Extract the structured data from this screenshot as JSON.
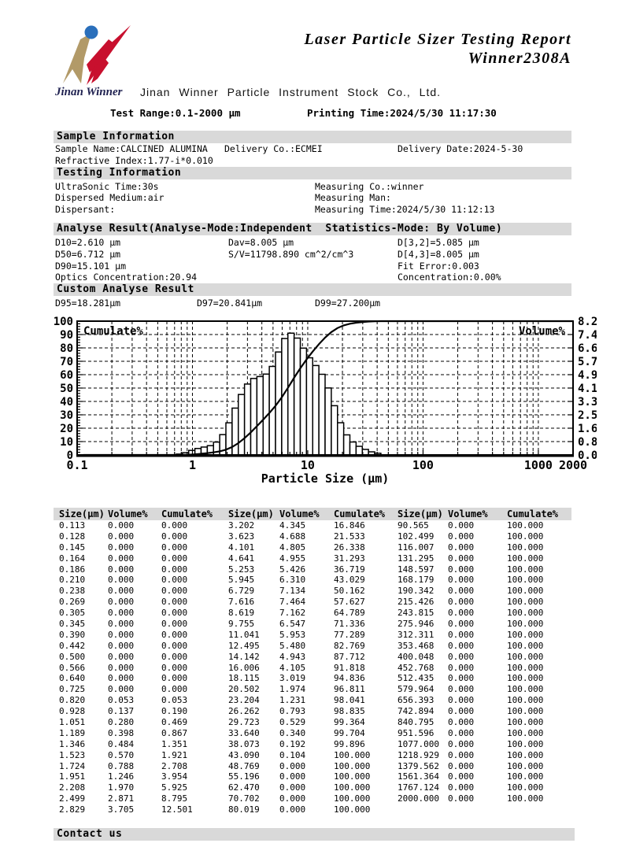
{
  "header": {
    "title_line1": "Laser Particle Sizer Testing Report",
    "title_line2": "Winner2308A",
    "logo_text": "Jinan Winner",
    "company": "Jinan Winner Particle Instrument Stock Co., Ltd.",
    "test_range": "Test Range:0.1-2000 μm",
    "printing_time": "Printing Time:2024/5/30 11:17:30"
  },
  "sample_information": {
    "heading": "Sample Information",
    "sample_name": "Sample Name:CALCINED ALUMINA",
    "delivery_co": "Delivery Co.:ECMEI",
    "delivery_date": "Delivery Date:2024-5-30",
    "refractive_index": "Refractive Index:1.77-i*0.010"
  },
  "testing_information": {
    "heading": "Testing Information",
    "ultrasonic_time": "UltraSonic Time:30s",
    "measuring_co": "Measuring Co.:winner",
    "dispersed_medium": "Dispersed Medium:air",
    "measuring_man": "Measuring Man:",
    "dispersant": "Dispersant:",
    "measuring_time": "Measuring Time:2024/5/30 11:12:13"
  },
  "analyse_result": {
    "heading": "Analyse Result(Analyse-Mode:Independent  Statistics-Mode: By Volume)",
    "d10": "D10=2.610 μm",
    "dav": "Dav=8.005 μm",
    "d32": "D[3,2]=5.085 μm",
    "d50": "D50=6.712 μm",
    "sv": "S/V=11798.890 cm^2/cm^3",
    "d43": "D[4,3]=8.005 μm",
    "d90": "D90=15.101 μm",
    "fit_error": "Fit Error:0.003",
    "optics_concentration": "Optics Concentration:20.94",
    "concentration": "Concentration:0.00%"
  },
  "custom_analyse_result": {
    "heading": "Custom Analyse Result",
    "d95": "D95=18.281μm",
    "d97": "D97=20.841μm",
    "d99": "D99=27.200μm"
  },
  "chart_data": {
    "type": "histogram+cumulative-line",
    "x_axis": {
      "label": "Particle Size (μm)",
      "scale": "log",
      "min": 0.1,
      "max": 2000,
      "tick_labels": [
        "0.1",
        "1",
        "10",
        "100",
        "1000",
        "2000"
      ],
      "tick_values": [
        0.1,
        1,
        10,
        100,
        1000,
        2000
      ]
    },
    "left_axis": {
      "label": "Cumulate%",
      "min": 0,
      "max": 100,
      "ticks": [
        0,
        10,
        20,
        30,
        40,
        50,
        60,
        70,
        80,
        90,
        100
      ]
    },
    "right_axis": {
      "label": "Volume%",
      "min": 0,
      "max": 8.2,
      "tick_labels": [
        "0.0",
        "0.8",
        "1.6",
        "2.5",
        "3.3",
        "4.1",
        "4.9",
        "5.7",
        "6.6",
        "7.4",
        "8.2"
      ]
    },
    "grid": "dashed",
    "sizes": [
      0.113,
      0.128,
      0.145,
      0.164,
      0.186,
      0.21,
      0.238,
      0.269,
      0.305,
      0.345,
      0.39,
      0.442,
      0.5,
      0.566,
      0.64,
      0.725,
      0.82,
      0.928,
      1.051,
      1.189,
      1.346,
      1.523,
      1.724,
      1.951,
      2.208,
      2.499,
      2.829,
      3.202,
      3.623,
      4.101,
      4.641,
      5.253,
      5.945,
      6.729,
      7.616,
      8.619,
      9.755,
      11.041,
      12.495,
      14.142,
      16.006,
      18.115,
      20.502,
      23.204,
      26.262,
      29.723,
      33.64,
      38.073,
      43.09,
      48.769,
      55.196,
      62.47,
      70.702,
      80.019,
      90.565,
      102.499,
      116.007,
      131.295,
      148.597,
      168.179,
      190.342,
      215.426,
      243.815,
      275.946,
      312.311,
      353.468,
      400.048,
      452.768,
      512.435,
      579.964,
      656.393,
      742.894,
      840.795,
      951.596,
      1077.0,
      1218.929,
      1379.562,
      1561.364,
      1767.124,
      2000.0
    ],
    "volume": [
      0,
      0,
      0,
      0,
      0,
      0,
      0,
      0,
      0,
      0,
      0,
      0,
      0,
      0,
      0,
      0,
      0.053,
      0.137,
      0.28,
      0.398,
      0.484,
      0.57,
      0.788,
      1.246,
      1.97,
      2.871,
      3.705,
      4.345,
      4.688,
      4.805,
      4.955,
      5.426,
      6.31,
      7.134,
      7.464,
      7.162,
      6.547,
      5.953,
      5.48,
      4.943,
      4.105,
      3.019,
      1.974,
      1.231,
      0.793,
      0.529,
      0.34,
      0.192,
      0.104,
      0,
      0,
      0,
      0,
      0,
      0,
      0,
      0,
      0,
      0,
      0,
      0,
      0,
      0,
      0,
      0,
      0,
      0,
      0,
      0,
      0,
      0,
      0,
      0,
      0,
      0,
      0,
      0,
      0,
      0,
      0
    ],
    "cumulate": [
      0,
      0,
      0,
      0,
      0,
      0,
      0,
      0,
      0,
      0,
      0,
      0,
      0,
      0,
      0,
      0,
      0.053,
      0.19,
      0.469,
      0.867,
      1.351,
      1.921,
      2.708,
      3.954,
      5.925,
      8.795,
      12.501,
      16.846,
      21.533,
      26.338,
      31.293,
      36.719,
      43.029,
      50.162,
      57.627,
      64.789,
      71.336,
      77.289,
      82.769,
      87.712,
      91.818,
      94.836,
      96.811,
      98.041,
      98.835,
      99.364,
      99.704,
      99.896,
      100.0,
      100,
      100,
      100,
      100,
      100,
      100,
      100,
      100,
      100,
      100,
      100,
      100,
      100,
      100,
      100,
      100,
      100,
      100,
      100,
      100,
      100,
      100,
      100,
      100,
      100,
      100,
      100,
      100,
      100,
      100,
      100
    ]
  },
  "table": {
    "headers": [
      "Size(μm)",
      "Volume%",
      "Cumulate%",
      "Size(μm)",
      "Volume%",
      "Cumulate%",
      "Size(μm)",
      "Volume%",
      "Cumulate%"
    ],
    "rows": [
      [
        "0.113",
        "0.000",
        "0.000",
        "3.202",
        "4.345",
        "16.846",
        "90.565",
        "0.000",
        "100.000"
      ],
      [
        "0.128",
        "0.000",
        "0.000",
        "3.623",
        "4.688",
        "21.533",
        "102.499",
        "0.000",
        "100.000"
      ],
      [
        "0.145",
        "0.000",
        "0.000",
        "4.101",
        "4.805",
        "26.338",
        "116.007",
        "0.000",
        "100.000"
      ],
      [
        "0.164",
        "0.000",
        "0.000",
        "4.641",
        "4.955",
        "31.293",
        "131.295",
        "0.000",
        "100.000"
      ],
      [
        "0.186",
        "0.000",
        "0.000",
        "5.253",
        "5.426",
        "36.719",
        "148.597",
        "0.000",
        "100.000"
      ],
      [
        "0.210",
        "0.000",
        "0.000",
        "5.945",
        "6.310",
        "43.029",
        "168.179",
        "0.000",
        "100.000"
      ],
      [
        "0.238",
        "0.000",
        "0.000",
        "6.729",
        "7.134",
        "50.162",
        "190.342",
        "0.000",
        "100.000"
      ],
      [
        "0.269",
        "0.000",
        "0.000",
        "7.616",
        "7.464",
        "57.627",
        "215.426",
        "0.000",
        "100.000"
      ],
      [
        "0.305",
        "0.000",
        "0.000",
        "8.619",
        "7.162",
        "64.789",
        "243.815",
        "0.000",
        "100.000"
      ],
      [
        "0.345",
        "0.000",
        "0.000",
        "9.755",
        "6.547",
        "71.336",
        "275.946",
        "0.000",
        "100.000"
      ],
      [
        "0.390",
        "0.000",
        "0.000",
        "11.041",
        "5.953",
        "77.289",
        "312.311",
        "0.000",
        "100.000"
      ],
      [
        "0.442",
        "0.000",
        "0.000",
        "12.495",
        "5.480",
        "82.769",
        "353.468",
        "0.000",
        "100.000"
      ],
      [
        "0.500",
        "0.000",
        "0.000",
        "14.142",
        "4.943",
        "87.712",
        "400.048",
        "0.000",
        "100.000"
      ],
      [
        "0.566",
        "0.000",
        "0.000",
        "16.006",
        "4.105",
        "91.818",
        "452.768",
        "0.000",
        "100.000"
      ],
      [
        "0.640",
        "0.000",
        "0.000",
        "18.115",
        "3.019",
        "94.836",
        "512.435",
        "0.000",
        "100.000"
      ],
      [
        "0.725",
        "0.000",
        "0.000",
        "20.502",
        "1.974",
        "96.811",
        "579.964",
        "0.000",
        "100.000"
      ],
      [
        "0.820",
        "0.053",
        "0.053",
        "23.204",
        "1.231",
        "98.041",
        "656.393",
        "0.000",
        "100.000"
      ],
      [
        "0.928",
        "0.137",
        "0.190",
        "26.262",
        "0.793",
        "98.835",
        "742.894",
        "0.000",
        "100.000"
      ],
      [
        "1.051",
        "0.280",
        "0.469",
        "29.723",
        "0.529",
        "99.364",
        "840.795",
        "0.000",
        "100.000"
      ],
      [
        "1.189",
        "0.398",
        "0.867",
        "33.640",
        "0.340",
        "99.704",
        "951.596",
        "0.000",
        "100.000"
      ],
      [
        "1.346",
        "0.484",
        "1.351",
        "38.073",
        "0.192",
        "99.896",
        "1077.000",
        "0.000",
        "100.000"
      ],
      [
        "1.523",
        "0.570",
        "1.921",
        "43.090",
        "0.104",
        "100.000",
        "1218.929",
        "0.000",
        "100.000"
      ],
      [
        "1.724",
        "0.788",
        "2.708",
        "48.769",
        "0.000",
        "100.000",
        "1379.562",
        "0.000",
        "100.000"
      ],
      [
        "1.951",
        "1.246",
        "3.954",
        "55.196",
        "0.000",
        "100.000",
        "1561.364",
        "0.000",
        "100.000"
      ],
      [
        "2.208",
        "1.970",
        "5.925",
        "62.470",
        "0.000",
        "100.000",
        "1767.124",
        "0.000",
        "100.000"
      ],
      [
        "2.499",
        "2.871",
        "8.795",
        "70.702",
        "0.000",
        "100.000",
        "2000.000",
        "0.000",
        "100.000"
      ],
      [
        "2.829",
        "3.705",
        "12.501",
        "80.019",
        "0.000",
        "100.000",
        "",
        "",
        ""
      ]
    ]
  },
  "contact": {
    "heading": "Contact us"
  },
  "colors": {
    "section_bar": "#d9d9d9",
    "logo_blue": "#2a6fbb",
    "logo_tan": "#b29a68",
    "logo_red": "#c8102e"
  }
}
